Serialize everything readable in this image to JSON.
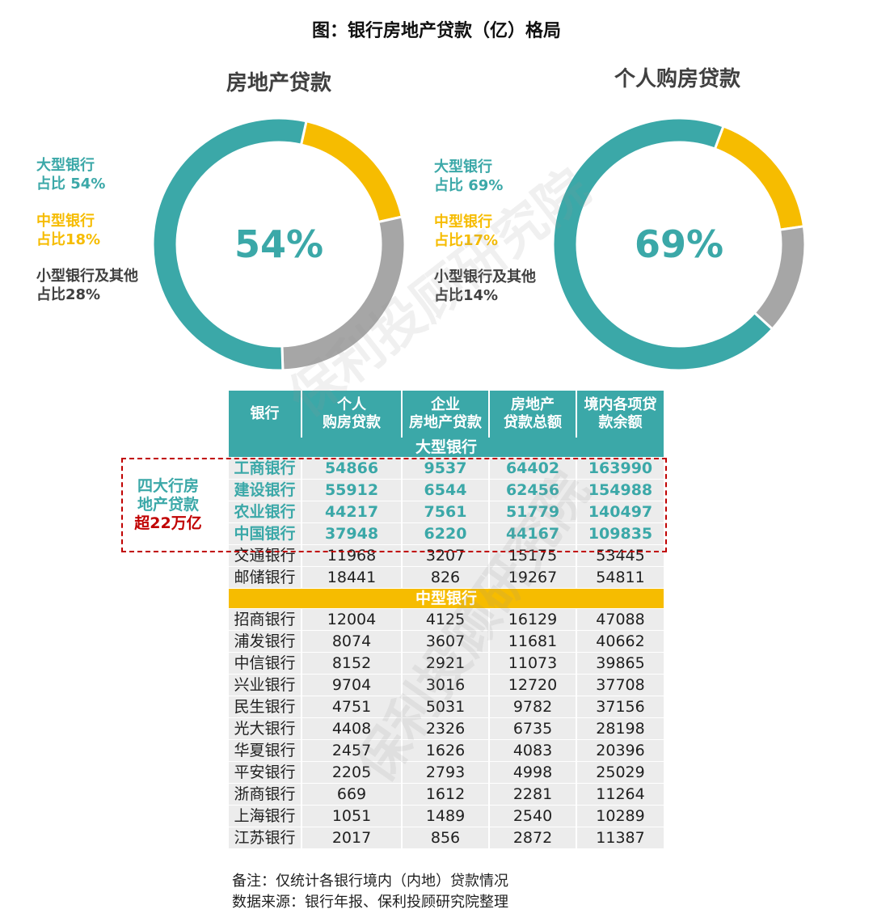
{
  "title": "图：银行房地产贷款（亿）格局",
  "chart_data": [
    {
      "type": "pie",
      "title": "房地产贷款",
      "center_label": "54%",
      "slices": [
        {
          "label_line1": "大型银行",
          "label_line2": "占比 54%",
          "value": 54,
          "color": "#3ba8a8"
        },
        {
          "label_line1": "中型银行",
          "label_line2": "占比18%",
          "value": 18,
          "color": "#f6bc00"
        },
        {
          "label_line1": "小型银行及其他",
          "label_line2": "占比28%",
          "value": 28,
          "color": "#a6a6a6"
        }
      ]
    },
    {
      "type": "pie",
      "title": "个人购房贷款",
      "center_label": "69%",
      "slices": [
        {
          "label_line1": "大型银行",
          "label_line2": "占比 69%",
          "value": 69,
          "color": "#3ba8a8"
        },
        {
          "label_line1": "中型银行",
          "label_line2": "占比17%",
          "value": 17,
          "color": "#f6bc00"
        },
        {
          "label_line1": "小型银行及其他",
          "label_line2": "占比14%",
          "value": 14,
          "color": "#a6a6a6"
        }
      ]
    },
    {
      "type": "table",
      "headers": [
        "银行",
        "个人\n购房贷款",
        "企业\n房地产贷款",
        "房地产\n贷款总额",
        "境内各项贷\n款余额"
      ],
      "groups": [
        {
          "name": "大型银行",
          "rows": [
            [
              "工商银行",
              "54866",
              "9537",
              "64402",
              "163990"
            ],
            [
              "建设银行",
              "55912",
              "6544",
              "62456",
              "154988"
            ],
            [
              "农业银行",
              "44217",
              "7561",
              "51779",
              "140497"
            ],
            [
              "中国银行",
              "37948",
              "6220",
              "44167",
              "109835"
            ],
            [
              "交通银行",
              "11968",
              "3207",
              "15175",
              "53445"
            ],
            [
              "邮储银行",
              "18441",
              "826",
              "19267",
              "54811"
            ]
          ]
        },
        {
          "name": "中型银行",
          "rows": [
            [
              "招商银行",
              "12004",
              "4125",
              "16129",
              "47088"
            ],
            [
              "浦发银行",
              "8074",
              "3607",
              "11681",
              "40662"
            ],
            [
              "中信银行",
              "8152",
              "2921",
              "11073",
              "39865"
            ],
            [
              "兴业银行",
              "9704",
              "3016",
              "12720",
              "37708"
            ],
            [
              "民生银行",
              "4751",
              "5031",
              "9782",
              "37156"
            ],
            [
              "光大银行",
              "4408",
              "2326",
              "6735",
              "28198"
            ],
            [
              "华夏银行",
              "2457",
              "1626",
              "4083",
              "20396"
            ],
            [
              "平安银行",
              "2205",
              "2793",
              "4998",
              "25029"
            ],
            [
              "浙商银行",
              "669",
              "1612",
              "2281",
              "11264"
            ],
            [
              "上海银行",
              "1051",
              "1489",
              "2540",
              "10289"
            ],
            [
              "江苏银行",
              "2017",
              "856",
              "2872",
              "11387"
            ]
          ]
        }
      ]
    }
  ],
  "callout": {
    "line1": "四大行房",
    "line2": "地产贷款",
    "line3": "超22万亿"
  },
  "notes": {
    "note": "备注：仅统计各银行境内（内地）贷款情况",
    "source": "数据来源：银行年报、保利投顾研究院整理"
  },
  "watermark": "保利投顾研究院"
}
